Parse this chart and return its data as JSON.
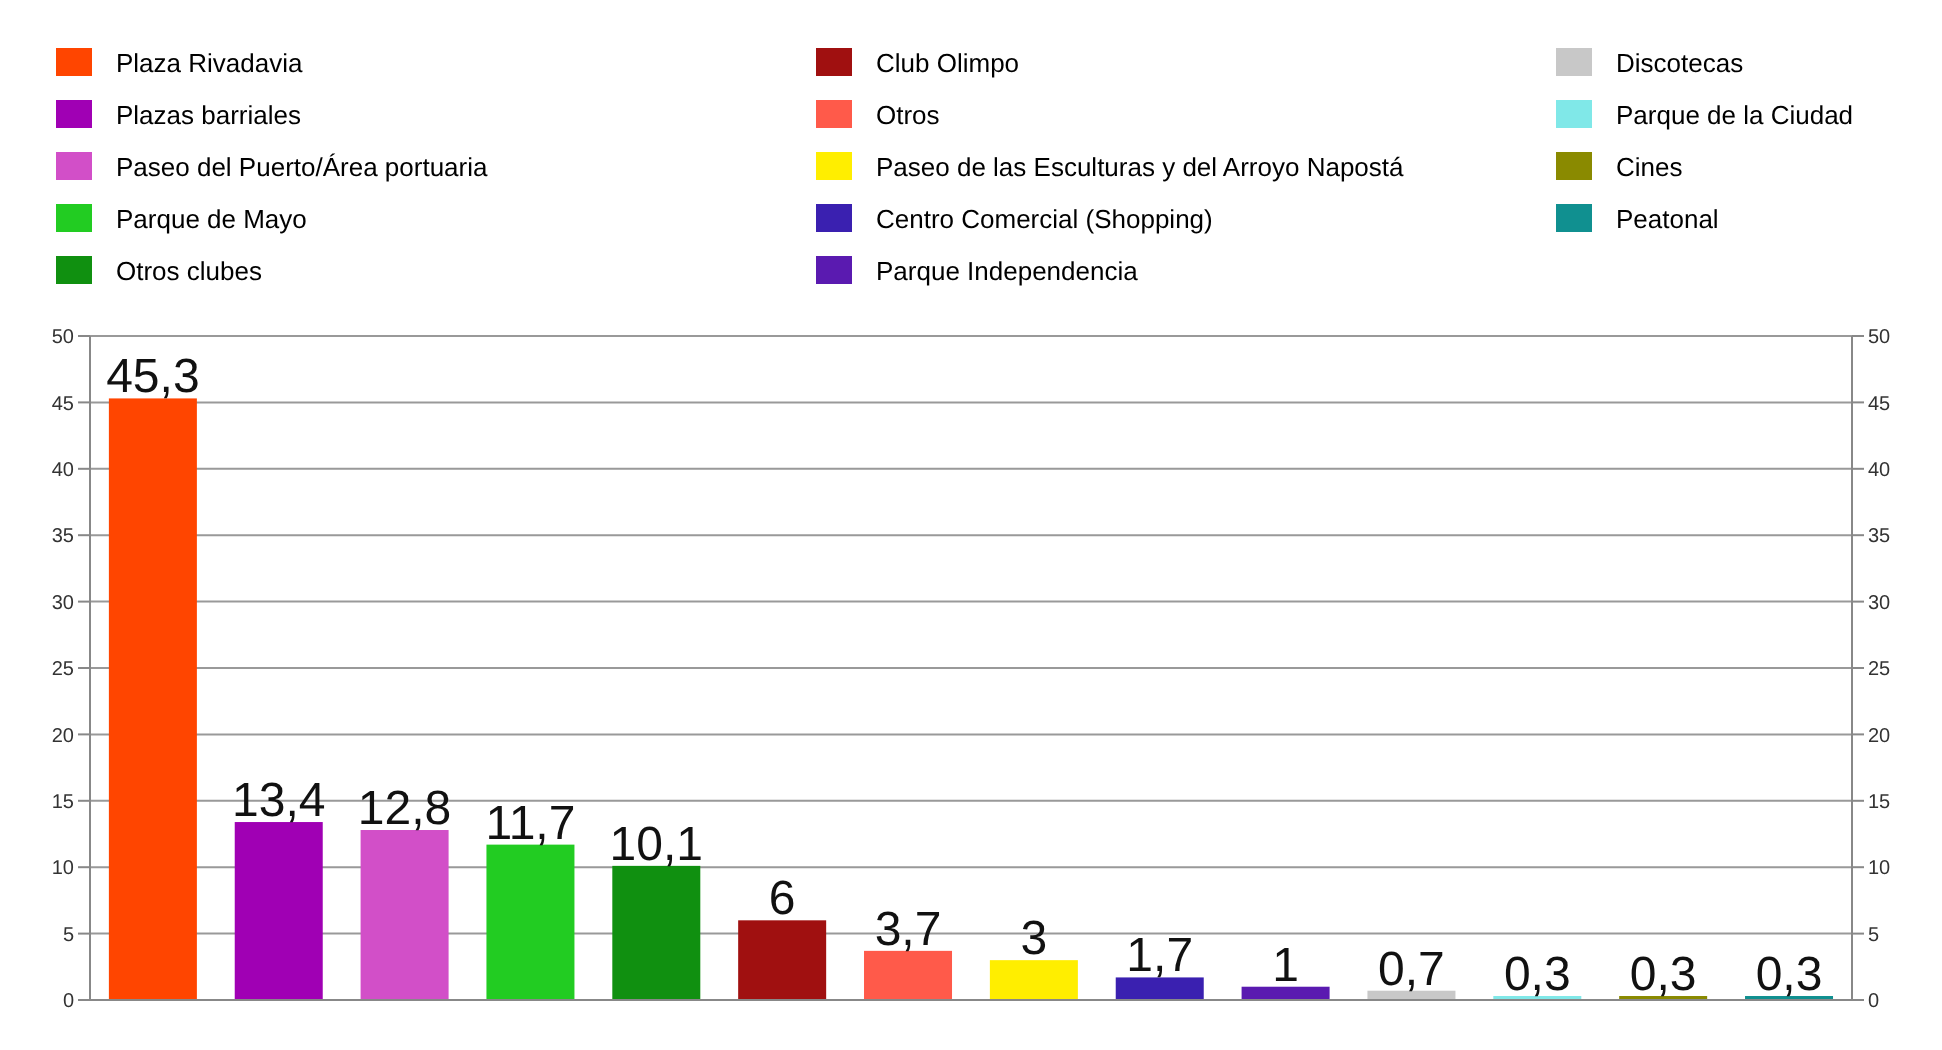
{
  "chart_data": {
    "type": "bar",
    "categories": [
      null,
      null,
      null,
      null,
      null,
      null,
      null,
      null,
      null,
      null,
      null,
      null,
      null,
      null
    ],
    "series": [
      {
        "name": "Plaza Rivadavia",
        "color": "#ff4500",
        "values": [
          45.3,
          null,
          null,
          null,
          null,
          null,
          null,
          null,
          null,
          null,
          null,
          null,
          null,
          null
        ],
        "value_labels": [
          "45,3",
          null,
          null,
          null,
          null,
          null,
          null,
          null,
          null,
          null,
          null,
          null,
          null,
          null
        ]
      },
      {
        "name": "Plazas barriales",
        "color": "#a000b4",
        "values": [
          null,
          13.4,
          null,
          null,
          null,
          null,
          null,
          null,
          null,
          null,
          null,
          null,
          null,
          null
        ],
        "value_labels": [
          null,
          "13,4",
          null,
          null,
          null,
          null,
          null,
          null,
          null,
          null,
          null,
          null,
          null,
          null
        ]
      },
      {
        "name": "Paseo del Puerto/Área portuaria",
        "color": "#d24fc8",
        "values": [
          null,
          null,
          12.8,
          null,
          null,
          null,
          null,
          null,
          null,
          null,
          null,
          null,
          null,
          null
        ],
        "value_labels": [
          null,
          null,
          "12,8",
          null,
          null,
          null,
          null,
          null,
          null,
          null,
          null,
          null,
          null,
          null
        ]
      },
      {
        "name": "Parque de Mayo",
        "color": "#22cc22",
        "values": [
          null,
          null,
          null,
          11.7,
          null,
          null,
          null,
          null,
          null,
          null,
          null,
          null,
          null,
          null
        ],
        "value_labels": [
          null,
          null,
          null,
          "11,7",
          null,
          null,
          null,
          null,
          null,
          null,
          null,
          null,
          null,
          null
        ]
      },
      {
        "name": "Otros clubes",
        "color": "#109010",
        "values": [
          null,
          null,
          null,
          null,
          10.1,
          null,
          null,
          null,
          null,
          null,
          null,
          null,
          null,
          null
        ],
        "value_labels": [
          null,
          null,
          null,
          null,
          "10,1",
          null,
          null,
          null,
          null,
          null,
          null,
          null,
          null,
          null
        ]
      },
      {
        "name": "Club Olimpo",
        "color": "#a01010",
        "values": [
          null,
          null,
          null,
          null,
          null,
          6,
          null,
          null,
          null,
          null,
          null,
          null,
          null,
          null
        ],
        "value_labels": [
          null,
          null,
          null,
          null,
          null,
          "6",
          null,
          null,
          null,
          null,
          null,
          null,
          null,
          null
        ]
      },
      {
        "name": "Otros",
        "color": "#ff5a4a",
        "values": [
          null,
          null,
          null,
          null,
          null,
          null,
          3.7,
          null,
          null,
          null,
          null,
          null,
          null,
          null
        ],
        "value_labels": [
          null,
          null,
          null,
          null,
          null,
          null,
          "3,7",
          null,
          null,
          null,
          null,
          null,
          null,
          null
        ]
      },
      {
        "name": "Paseo de las Esculturas y del Arroyo Napostá",
        "color": "#ffee00",
        "values": [
          null,
          null,
          null,
          null,
          null,
          null,
          null,
          3,
          null,
          null,
          null,
          null,
          null,
          null
        ],
        "value_labels": [
          null,
          null,
          null,
          null,
          null,
          null,
          null,
          "3",
          null,
          null,
          null,
          null,
          null,
          null
        ]
      },
      {
        "name": "Centro Comercial (Shopping)",
        "color": "#3a20b0",
        "values": [
          null,
          null,
          null,
          null,
          null,
          null,
          null,
          null,
          1.7,
          null,
          null,
          null,
          null,
          null
        ],
        "value_labels": [
          null,
          null,
          null,
          null,
          null,
          null,
          null,
          null,
          "1,7",
          null,
          null,
          null,
          null,
          null
        ]
      },
      {
        "name": "Parque Independencia",
        "color": "#5a1ab0",
        "values": [
          null,
          null,
          null,
          null,
          null,
          null,
          null,
          null,
          null,
          1,
          null,
          null,
          null,
          null
        ],
        "value_labels": [
          null,
          null,
          null,
          null,
          null,
          null,
          null,
          null,
          null,
          "1",
          null,
          null,
          null,
          null
        ]
      },
      {
        "name": "Discotecas",
        "color": "#c8c8c8",
        "values": [
          null,
          null,
          null,
          null,
          null,
          null,
          null,
          null,
          null,
          null,
          0.7,
          null,
          null,
          null
        ],
        "value_labels": [
          null,
          null,
          null,
          null,
          null,
          null,
          null,
          null,
          null,
          null,
          "0,7",
          null,
          null,
          null
        ]
      },
      {
        "name": "Parque de la Ciudad",
        "color": "#80e8e8",
        "values": [
          null,
          null,
          null,
          null,
          null,
          null,
          null,
          null,
          null,
          null,
          null,
          0.3,
          null,
          null
        ],
        "value_labels": [
          null,
          null,
          null,
          null,
          null,
          null,
          null,
          null,
          null,
          null,
          null,
          "0,3",
          null,
          null
        ]
      },
      {
        "name": "Cines",
        "color": "#8a8a00",
        "values": [
          null,
          null,
          null,
          null,
          null,
          null,
          null,
          null,
          null,
          null,
          null,
          null,
          0.3,
          null
        ],
        "value_labels": [
          null,
          null,
          null,
          null,
          null,
          null,
          null,
          null,
          null,
          null,
          null,
          null,
          "0,3",
          null
        ]
      },
      {
        "name": "Peatonal",
        "color": "#109090",
        "values": [
          null,
          null,
          null,
          null,
          null,
          null,
          null,
          null,
          null,
          null,
          null,
          null,
          null,
          0.3
        ],
        "value_labels": [
          null,
          null,
          null,
          null,
          null,
          null,
          null,
          null,
          null,
          null,
          null,
          null,
          null,
          "0,3"
        ]
      }
    ],
    "ylim": [
      0,
      50
    ],
    "yticks": [
      0,
      5,
      10,
      15,
      20,
      25,
      30,
      35,
      40,
      45,
      50
    ],
    "y2lim": [
      0,
      50
    ],
    "y2ticks": [
      0,
      5,
      10,
      15,
      20,
      25,
      30,
      35,
      40,
      45,
      50
    ],
    "grid": "y",
    "legend": "top"
  }
}
